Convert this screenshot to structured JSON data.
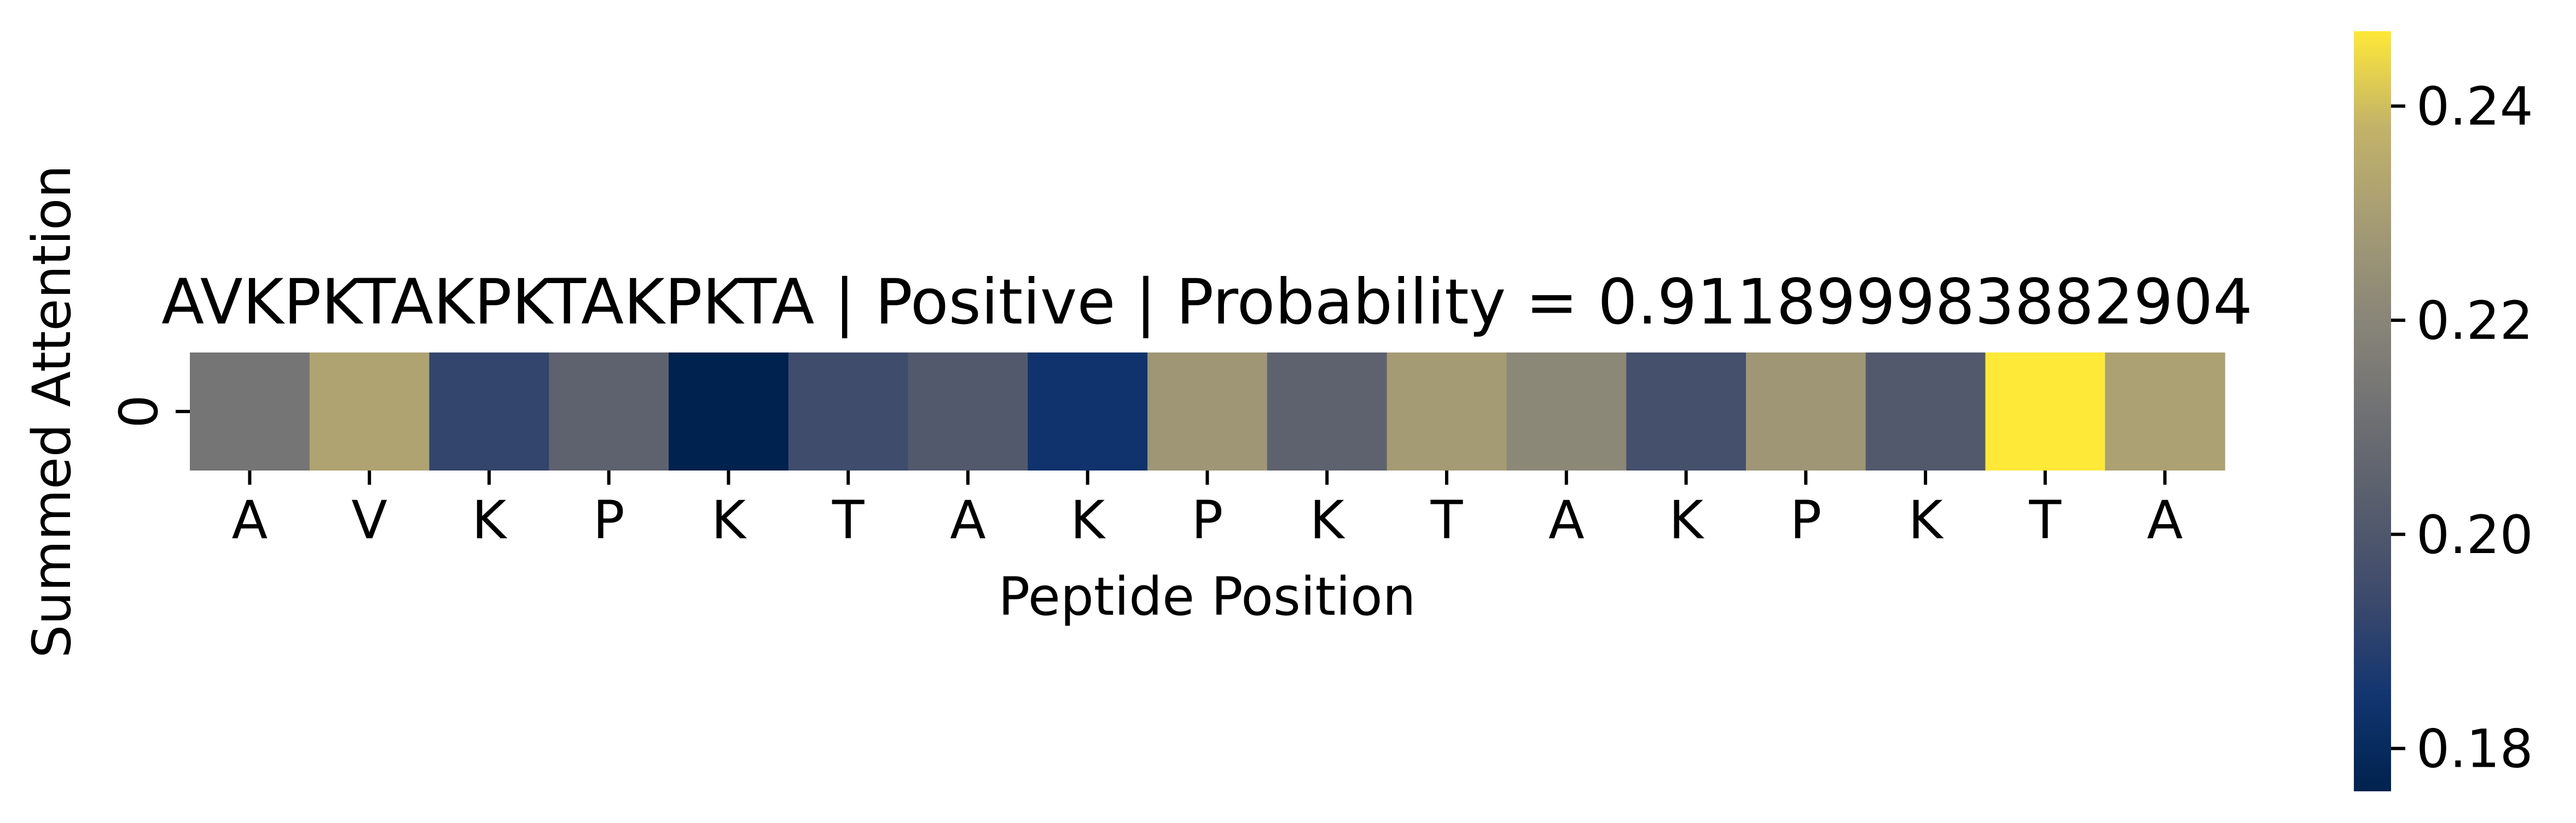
{
  "chart_data": {
    "type": "heatmap",
    "title": "AVKPKTAKPKTAKPKTA | Positive | Probability = 0.911899983882904",
    "xlabel": "Peptide Position",
    "ylabel": "Summed Attention",
    "x_tick_labels": [
      "A",
      "V",
      "K",
      "P",
      "K",
      "T",
      "A",
      "K",
      "P",
      "K",
      "T",
      "A",
      "K",
      "P",
      "K",
      "T",
      "A"
    ],
    "y_tick_labels": [
      "0"
    ],
    "values": [
      0.213,
      0.232,
      0.192,
      0.205,
      0.176,
      0.195,
      0.201,
      0.184,
      0.227,
      0.205,
      0.229,
      0.221,
      0.197,
      0.227,
      0.201,
      0.247,
      0.231
    ],
    "colormap": "cividis",
    "color_range": [
      0.176,
      0.247
    ],
    "colorbar": {
      "ticks": [
        0.18,
        0.2,
        0.22,
        0.24
      ],
      "tick_labels": [
        "0.18",
        "0.20",
        "0.22",
        "0.24"
      ],
      "placement": "right"
    }
  }
}
